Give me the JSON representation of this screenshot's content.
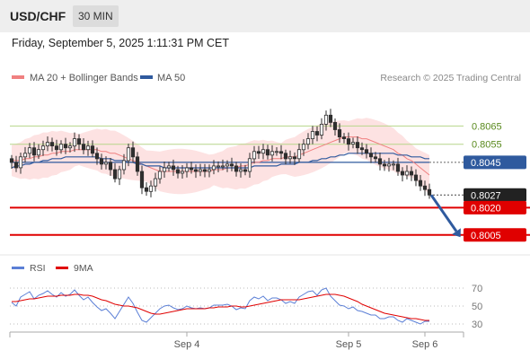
{
  "header": {
    "pair": "USD/CHF",
    "timeframe": "30 MIN"
  },
  "datetime": "Friday, September 5, 2025 1:11:31 PM CET",
  "legend": [
    {
      "label": "MA 20 + Bollinger Bands",
      "color": "#f08080"
    },
    {
      "label": "MA 50",
      "color": "#2f5a9e"
    }
  ],
  "copyright": "Research © 2025 Trading Central",
  "colors": {
    "up": "#2e2e2e",
    "down": "#2e2e2e",
    "band_fill": "#fde2e2",
    "ma20": "#f08080",
    "ma50": "#2f5a9e",
    "resistance": "#b7d68a",
    "pivot": "#2f5a9e",
    "support": "#e00000",
    "last": "#222222",
    "rsi": "#5b7fd6",
    "rsi_ma": "#e00000",
    "arrow": "#2f5a9e"
  },
  "chart_data": [
    {
      "type": "candlestick",
      "ylim": [
        0.7995,
        0.8085
      ],
      "levels": [
        {
          "value": 0.8065,
          "label": "0.8065",
          "kind": "resistance"
        },
        {
          "value": 0.8055,
          "label": "0.8055",
          "kind": "resistance"
        },
        {
          "value": 0.8045,
          "label": "0.8045",
          "kind": "pivot"
        },
        {
          "value": 0.8027,
          "label": "0.8027",
          "kind": "last"
        },
        {
          "value": 0.802,
          "label": "0.8020",
          "kind": "support"
        },
        {
          "value": 0.8005,
          "label": "0.8005",
          "kind": "support"
        }
      ],
      "x_ticks": [
        {
          "label": "Sep 4",
          "index": 39
        },
        {
          "label": "Sep 5",
          "index": 75
        },
        {
          "label": "Sep 6",
          "index": 92
        }
      ],
      "closes": [
        0.8045,
        0.8042,
        0.8048,
        0.805,
        0.8053,
        0.8049,
        0.8052,
        0.8054,
        0.8056,
        0.8054,
        0.8052,
        0.8055,
        0.8053,
        0.8054,
        0.8058,
        0.8055,
        0.8052,
        0.8054,
        0.805,
        0.8047,
        0.8044,
        0.8045,
        0.8041,
        0.8036,
        0.8041,
        0.8046,
        0.8053,
        0.8048,
        0.804,
        0.8031,
        0.8029,
        0.8032,
        0.8036,
        0.804,
        0.8042,
        0.8043,
        0.8041,
        0.8039,
        0.804,
        0.8042,
        0.8041,
        0.804,
        0.8041,
        0.804,
        0.8041,
        0.8043,
        0.8043,
        0.8043,
        0.8044,
        0.8043,
        0.804,
        0.8041,
        0.804,
        0.8047,
        0.8051,
        0.805,
        0.8052,
        0.8049,
        0.8051,
        0.8051,
        0.805,
        0.8047,
        0.8048,
        0.8047,
        0.8052,
        0.8055,
        0.8058,
        0.8062,
        0.806,
        0.8066,
        0.8071,
        0.8067,
        0.8063,
        0.8059,
        0.8058,
        0.8055,
        0.8056,
        0.8053,
        0.8052,
        0.805,
        0.8048,
        0.8047,
        0.8044,
        0.8043,
        0.8044,
        0.8044,
        0.804,
        0.8038,
        0.804,
        0.8038,
        0.8035,
        0.8032,
        0.803,
        0.8027
      ],
      "ma20": [
        0.8046,
        0.8046,
        0.8046,
        0.8047,
        0.8047,
        0.8048,
        0.8048,
        0.8049,
        0.8049,
        0.805,
        0.805,
        0.8051,
        0.8051,
        0.8051,
        0.8052,
        0.8052,
        0.8052,
        0.8052,
        0.8052,
        0.8052,
        0.8051,
        0.8051,
        0.805,
        0.805,
        0.8049,
        0.8048,
        0.8047,
        0.8046,
        0.8045,
        0.8044,
        0.8043,
        0.8042,
        0.8041,
        0.804,
        0.804,
        0.804,
        0.804,
        0.804,
        0.804,
        0.804,
        0.804,
        0.804,
        0.804,
        0.804,
        0.804,
        0.8041,
        0.8041,
        0.8041,
        0.8042,
        0.8042,
        0.8042,
        0.8043,
        0.8043,
        0.8044,
        0.8045,
        0.8045,
        0.8046,
        0.8046,
        0.8047,
        0.8047,
        0.8047,
        0.8048,
        0.8048,
        0.8048,
        0.8049,
        0.805,
        0.8051,
        0.8052,
        0.8053,
        0.8054,
        0.8055,
        0.8056,
        0.8057,
        0.8058,
        0.8059,
        0.8059,
        0.8059,
        0.8059,
        0.8058,
        0.8058,
        0.8057,
        0.8056,
        0.8055,
        0.8054,
        0.8053,
        0.8052,
        0.805,
        0.8049,
        0.8047,
        0.8046,
        0.8044,
        0.8042,
        0.804,
        0.8038
      ],
      "ma50": [
        0.8042,
        0.8043,
        0.8043,
        0.8044,
        0.8044,
        0.8045,
        0.8045,
        0.8046,
        0.8046,
        0.8047,
        0.8047,
        0.8047,
        0.8048,
        0.8048,
        0.8048,
        0.8048,
        0.8048,
        0.8048,
        0.8048,
        0.8048,
        0.8047,
        0.8047,
        0.8047,
        0.8046,
        0.8046,
        0.8046,
        0.8045,
        0.8045,
        0.8044,
        0.8044,
        0.8043,
        0.8043,
        0.8043,
        0.8043,
        0.8042,
        0.8042,
        0.8042,
        0.8042,
        0.8042,
        0.8042,
        0.8042,
        0.8042,
        0.8042,
        0.8042,
        0.8042,
        0.8042,
        0.8042,
        0.8042,
        0.8042,
        0.8042,
        0.8042,
        0.8042,
        0.8042,
        0.8042,
        0.8043,
        0.8043,
        0.8043,
        0.8043,
        0.8043,
        0.8043,
        0.8044,
        0.8044,
        0.8044,
        0.8044,
        0.8045,
        0.8045,
        0.8045,
        0.8046,
        0.8046,
        0.8047,
        0.8047,
        0.8048,
        0.8048,
        0.8049,
        0.8049,
        0.805,
        0.805,
        0.805,
        0.805,
        0.805,
        0.805,
        0.805,
        0.805,
        0.805,
        0.805,
        0.805,
        0.8049,
        0.8049,
        0.8049,
        0.8048,
        0.8048,
        0.8048,
        0.8047,
        0.8047
      ]
    },
    {
      "type": "line",
      "title": "RSI",
      "series": [
        {
          "name": "RSI"
        },
        {
          "name": "9MA"
        }
      ],
      "ylim": [
        25,
        75
      ],
      "y_ticks": [
        70,
        50,
        30
      ],
      "rsi": [
        54,
        50,
        60,
        63,
        66,
        58,
        62,
        64,
        67,
        63,
        60,
        65,
        61,
        63,
        68,
        62,
        57,
        60,
        54,
        49,
        45,
        47,
        42,
        36,
        44,
        52,
        60,
        53,
        43,
        34,
        32,
        37,
        42,
        47,
        50,
        51,
        48,
        46,
        47,
        50,
        48,
        47,
        48,
        47,
        48,
        51,
        51,
        51,
        52,
        50,
        46,
        48,
        47,
        56,
        60,
        58,
        61,
        56,
        59,
        59,
        57,
        53,
        55,
        53,
        60,
        63,
        66,
        67,
        62,
        68,
        70,
        61,
        56,
        51,
        50,
        47,
        49,
        45,
        44,
        42,
        40,
        40,
        36,
        36,
        38,
        38,
        34,
        32,
        36,
        34,
        32,
        30,
        33,
        33
      ],
      "rsi_ma": [
        55,
        55,
        56,
        57,
        58,
        58,
        59,
        60,
        61,
        61,
        61,
        62,
        62,
        62,
        63,
        63,
        62,
        62,
        61,
        59,
        57,
        56,
        54,
        52,
        51,
        50,
        50,
        49,
        48,
        46,
        44,
        42,
        41,
        41,
        42,
        43,
        44,
        45,
        46,
        47,
        47,
        47,
        47,
        47,
        48,
        48,
        49,
        49,
        49,
        50,
        50,
        49,
        49,
        50,
        51,
        52,
        53,
        54,
        55,
        56,
        57,
        57,
        57,
        57,
        57,
        58,
        59,
        60,
        61,
        62,
        63,
        63,
        63,
        62,
        61,
        59,
        57,
        55,
        52,
        50,
        48,
        46,
        44,
        42,
        41,
        40,
        39,
        38,
        37,
        36,
        36,
        35,
        34,
        34
      ]
    }
  ]
}
